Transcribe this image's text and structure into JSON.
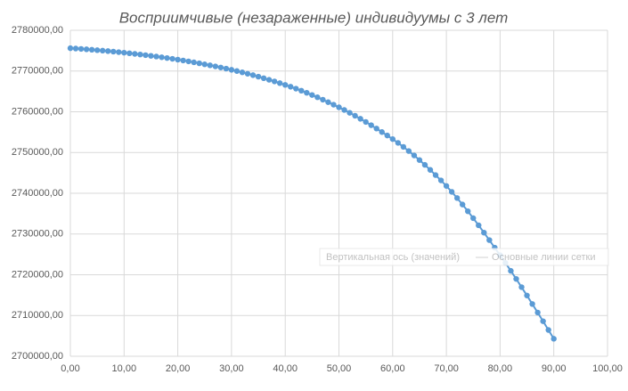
{
  "chart_data": {
    "type": "scatter-line",
    "title": "Восприимчивые (незараженные) индивидуумы с 3 лет",
    "tooltip": [
      "Вертикальная ось (значений)",
      "Основные линии сетки"
    ],
    "color": "#5b9bd5",
    "grid": true,
    "x": [
      0,
      1,
      2,
      3,
      4,
      5,
      6,
      7,
      8,
      9,
      10,
      11,
      12,
      13,
      14,
      15,
      16,
      17,
      18,
      19,
      20,
      21,
      22,
      23,
      24,
      25,
      26,
      27,
      28,
      29,
      30,
      31,
      32,
      33,
      34,
      35,
      36,
      37,
      38,
      39,
      40,
      41,
      42,
      43,
      44,
      45,
      46,
      47,
      48,
      49,
      50,
      51,
      52,
      53,
      54,
      55,
      56,
      57,
      58,
      59,
      60,
      61,
      62,
      63,
      64,
      65,
      66,
      67,
      68,
      69,
      70,
      71,
      72,
      73,
      74,
      75,
      76,
      77,
      78,
      79,
      80,
      81,
      82,
      83,
      84,
      85,
      86,
      87,
      88,
      89,
      90
    ],
    "values": [
      2775600,
      2775520,
      2775430,
      2775330,
      2775230,
      2775120,
      2775010,
      2774890,
      2774770,
      2774640,
      2774500,
      2774360,
      2774210,
      2774060,
      2773900,
      2773730,
      2773560,
      2773380,
      2773190,
      2773000,
      2772800,
      2772590,
      2772370,
      2772140,
      2771900,
      2771650,
      2771400,
      2771140,
      2770870,
      2770590,
      2770300,
      2770000,
      2769680,
      2769340,
      2768990,
      2768620,
      2768240,
      2767850,
      2767450,
      2767030,
      2766600,
      2766150,
      2765680,
      2765180,
      2764660,
      2764120,
      2763560,
      2762970,
      2762360,
      2761740,
      2761100,
      2760440,
      2759750,
      2759030,
      2758280,
      2757510,
      2756710,
      2755880,
      2755030,
      2754180,
      2753300,
      2752370,
      2751390,
      2750360,
      2749280,
      2748150,
      2746970,
      2745740,
      2744460,
      2743160,
      2741800,
      2740350,
      2738830,
      2737240,
      2735590,
      2733890,
      2732140,
      2730340,
      2728510,
      2726660,
      2724800,
      2722900,
      2720960,
      2718980,
      2716960,
      2714910,
      2712830,
      2710730,
      2708600,
      2706450,
      2704300
    ],
    "xlim": [
      0,
      100
    ],
    "xticks": [
      {
        "value": 0,
        "label": "0,00"
      },
      {
        "value": 10,
        "label": "10,00"
      },
      {
        "value": 20,
        "label": "20,00"
      },
      {
        "value": 30,
        "label": "30,00"
      },
      {
        "value": 40,
        "label": "40,00"
      },
      {
        "value": 50,
        "label": "50,00"
      },
      {
        "value": 60,
        "label": "60,00"
      },
      {
        "value": 70,
        "label": "70,00"
      },
      {
        "value": 80,
        "label": "80,00"
      },
      {
        "value": 90,
        "label": "90,00"
      },
      {
        "value": 100,
        "label": "100,00"
      }
    ],
    "ylim": [
      2700000,
      2780000
    ],
    "yticks": [
      {
        "value": 2700000,
        "label": "2700000,00"
      },
      {
        "value": 2710000,
        "label": "2710000,00"
      },
      {
        "value": 2720000,
        "label": "2720000,00"
      },
      {
        "value": 2730000,
        "label": "2730000,00"
      },
      {
        "value": 2740000,
        "label": "2740000,00"
      },
      {
        "value": 2750000,
        "label": "2750000,00"
      },
      {
        "value": 2760000,
        "label": "2760000,00"
      },
      {
        "value": 2770000,
        "label": "2770000,00"
      },
      {
        "value": 2780000,
        "label": "2780000,00"
      }
    ]
  }
}
